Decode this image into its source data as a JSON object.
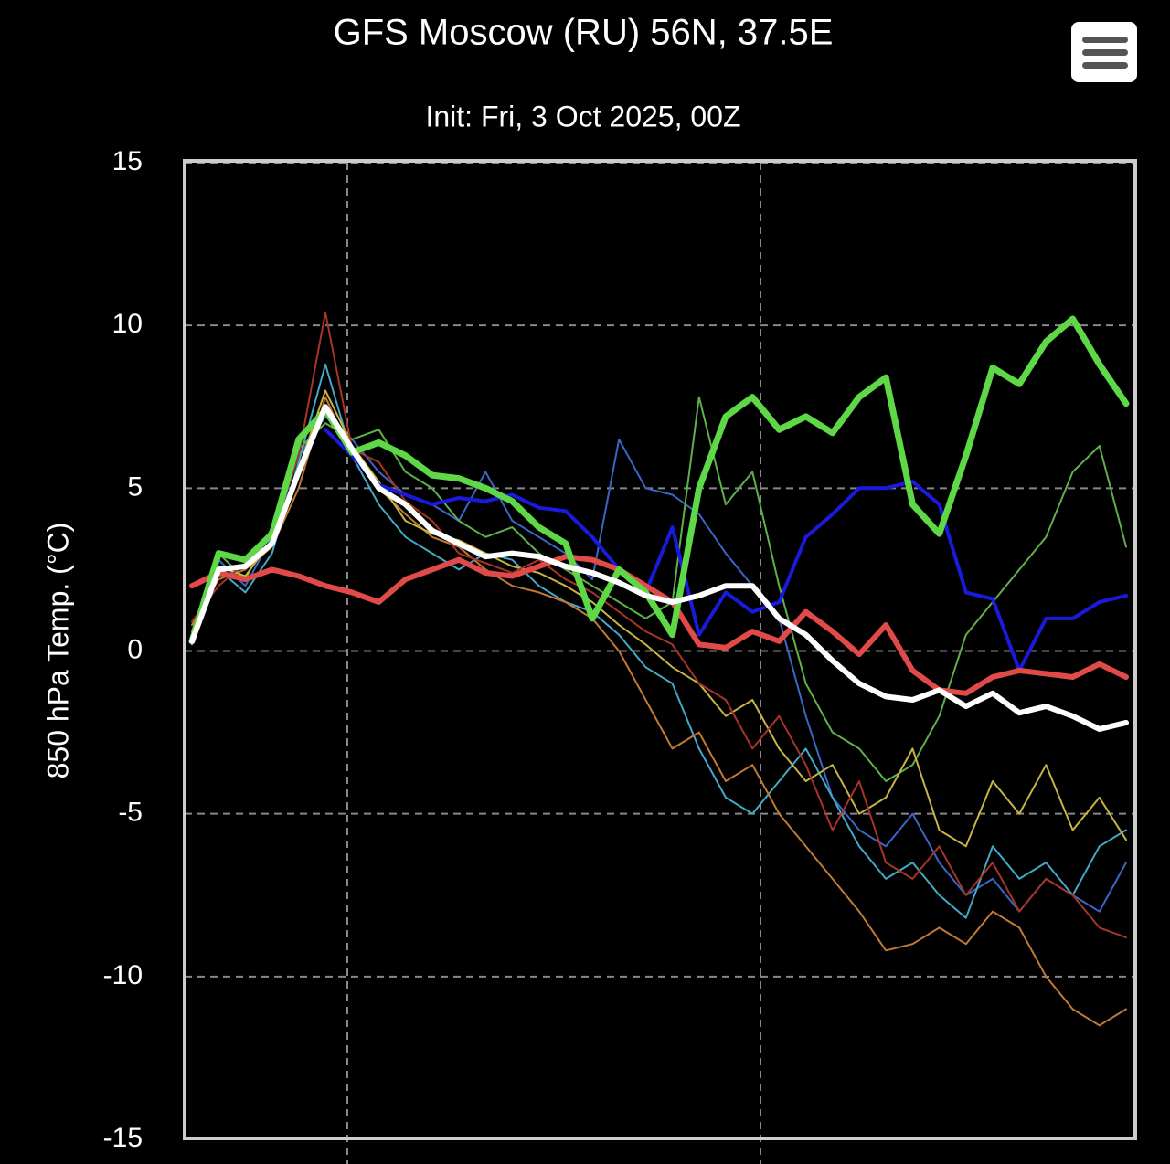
{
  "chart_data": {
    "type": "line",
    "title": "GFS Moscow (RU) 56N, 37.5E",
    "subtitle": "Init: Fri, 3 Oct 2025, 00Z",
    "ylabel": "850 hPa Temp. (°C)",
    "ylim": [
      -15,
      15
    ],
    "yticks": [
      -15,
      -10,
      -5,
      0,
      5,
      10,
      15
    ],
    "grid": true,
    "series": [
      {
        "color": "#3a66c8",
        "values": [
          0.5,
          2.8,
          2.0,
          3.5,
          6.0,
          7.2,
          6.5,
          5.5,
          4.8,
          4.5,
          4.0,
          5.5,
          4.0,
          3.5,
          3.0,
          2.2,
          6.5,
          5.0,
          4.8,
          4.2,
          3.0,
          2.0,
          1.0,
          -2.0,
          -4.5,
          -5.5,
          -6.0,
          -5.0,
          -6.5,
          -7.5,
          -7.0,
          -8.0,
          -7.0,
          -7.5,
          -8.0,
          -6.5
        ]
      },
      {
        "color": "#45a8c8",
        "values": [
          0.2,
          2.5,
          1.8,
          3.0,
          5.8,
          8.8,
          6.0,
          4.5,
          3.5,
          3.0,
          2.5,
          3.0,
          2.8,
          2.0,
          1.5,
          1.2,
          0.5,
          -0.5,
          -1.0,
          -3.0,
          -4.5,
          -5.0,
          -4.0,
          -3.0,
          -4.5,
          -6.0,
          -7.0,
          -6.5,
          -7.5,
          -8.2,
          -6.0,
          -7.0,
          -6.5,
          -7.5,
          -6.0,
          -5.5
        ]
      },
      {
        "color": "#5fb04a",
        "values": [
          0.6,
          3.0,
          2.2,
          3.8,
          6.2,
          7.0,
          6.5,
          6.8,
          5.5,
          5.0,
          4.0,
          3.5,
          3.8,
          3.0,
          2.5,
          2.0,
          1.5,
          1.0,
          1.5,
          7.8,
          4.5,
          5.5,
          2.0,
          -1.0,
          -2.5,
          -3.0,
          -4.0,
          -3.5,
          -2.0,
          0.5,
          1.5,
          2.5,
          3.5,
          5.5,
          6.3,
          3.2
        ]
      },
      {
        "color": "#c07a35",
        "values": [
          0.8,
          2.2,
          2.5,
          3.2,
          5.0,
          7.8,
          6.0,
          5.0,
          4.2,
          3.5,
          3.2,
          2.5,
          2.0,
          1.8,
          1.5,
          1.0,
          0.0,
          -1.5,
          -3.0,
          -2.5,
          -4.0,
          -3.5,
          -5.0,
          -6.0,
          -7.0,
          -8.0,
          -9.2,
          -9.0,
          -8.5,
          -9.0,
          -8.0,
          -8.5,
          -10.0,
          -11.0,
          -11.5,
          -11.0
        ]
      },
      {
        "color": "#c8b445",
        "values": [
          0.4,
          2.6,
          2.3,
          3.4,
          5.6,
          8.0,
          6.3,
          5.2,
          4.0,
          3.6,
          3.4,
          3.0,
          2.6,
          2.4,
          2.0,
          1.5,
          0.8,
          0.2,
          -0.5,
          -1.0,
          -2.0,
          -1.5,
          -3.0,
          -4.0,
          -3.5,
          -5.0,
          -4.5,
          -3.0,
          -5.5,
          -6.0,
          -4.0,
          -5.0,
          -3.5,
          -5.5,
          -4.5,
          -5.8
        ]
      },
      {
        "color": "#a83428",
        "values": [
          0.9,
          2.0,
          2.7,
          3.6,
          6.0,
          10.4,
          6.2,
          5.8,
          4.6,
          4.0,
          3.0,
          2.7,
          2.4,
          2.8,
          2.2,
          1.8,
          1.2,
          0.6,
          0.2,
          -1.0,
          -1.5,
          -3.0,
          -2.0,
          -3.5,
          -5.5,
          -4.0,
          -6.5,
          -7.0,
          -6.0,
          -7.5,
          -6.5,
          -8.0,
          -7.0,
          -7.5,
          -8.5,
          -8.8
        ]
      },
      {
        "color": "#1a1adc",
        "values": [
          null,
          null,
          null,
          null,
          null,
          6.8,
          6.0,
          5.1,
          4.8,
          4.5,
          4.7,
          4.6,
          4.8,
          4.4,
          4.3,
          3.5,
          2.5,
          1.8,
          3.8,
          0.5,
          1.8,
          1.2,
          1.5,
          3.5,
          4.2,
          5.0,
          5.0,
          5.2,
          4.5,
          1.8,
          1.6,
          -0.6,
          1.0,
          1.0,
          1.5,
          1.7
        ]
      },
      {
        "color": "#e04a48",
        "values": [
          2.0,
          2.4,
          2.2,
          2.5,
          2.3,
          2.0,
          1.8,
          1.5,
          2.2,
          2.5,
          2.8,
          2.4,
          2.3,
          2.6,
          2.9,
          2.8,
          2.5,
          2.0,
          1.5,
          0.2,
          0.1,
          0.6,
          0.3,
          1.2,
          0.6,
          -0.1,
          0.8,
          -0.6,
          -1.2,
          -1.3,
          -0.8,
          -0.6,
          -0.7,
          -0.8,
          -0.4,
          -0.8
        ]
      },
      {
        "color": "#5ed846",
        "values": [
          0.3,
          3.0,
          2.8,
          3.6,
          6.5,
          7.4,
          6.1,
          6.4,
          6.0,
          5.4,
          5.3,
          5.0,
          4.6,
          3.8,
          3.3,
          1.0,
          2.5,
          1.8,
          0.5,
          5.0,
          7.2,
          7.8,
          6.8,
          7.2,
          6.7,
          7.8,
          8.4,
          4.5,
          3.6,
          6.0,
          8.7,
          8.2,
          9.5,
          10.2,
          8.8,
          7.6
        ]
      },
      {
        "color": "#ffffff",
        "values": [
          0.3,
          2.5,
          2.6,
          3.3,
          5.5,
          7.5,
          6.2,
          5.0,
          4.5,
          3.7,
          3.3,
          2.9,
          3.0,
          2.9,
          2.6,
          2.4,
          2.1,
          1.7,
          1.5,
          1.7,
          2.0,
          2.0,
          1.0,
          0.5,
          -0.3,
          -1.0,
          -1.4,
          -1.5,
          -1.2,
          -1.7,
          -1.3,
          -1.9,
          -1.7,
          -2.0,
          -2.4,
          -2.2
        ]
      }
    ]
  }
}
